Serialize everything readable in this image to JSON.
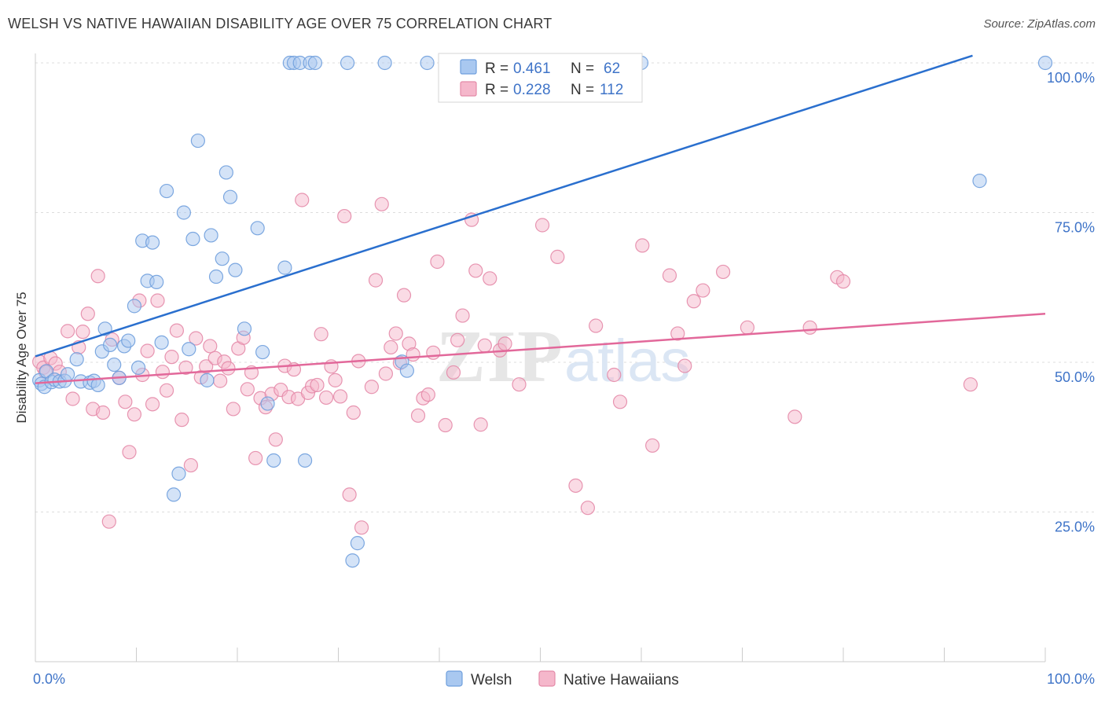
{
  "title": "WELSH VS NATIVE HAWAIIAN DISABILITY AGE OVER 75 CORRELATION CHART",
  "source": "Source: ZipAtlas.com",
  "watermark": {
    "zip": "ZIP",
    "atlas": "atlas"
  },
  "colors": {
    "welsh_fill": "#a9c8f0",
    "welsh_stroke": "#6f9fdd",
    "welsh_line": "#2a6fce",
    "hawaiian_fill": "#f5b7cb",
    "hawaiian_stroke": "#e48aa8",
    "hawaiian_line": "#e2689a",
    "tick_label": "#3f74c8",
    "grid": "#dddddd"
  },
  "legend": {
    "rows": [
      {
        "r_label": "R = ",
        "r_value": "0.461",
        "n_label": "N = ",
        "n_value": "62"
      },
      {
        "r_label": "R = ",
        "r_value": "0.228",
        "n_label": "N = ",
        "n_value": "112"
      }
    ],
    "bottom": [
      "Welsh",
      "Native Hawaiians"
    ]
  },
  "chart_data": {
    "type": "scatter",
    "title": "WELSH VS NATIVE HAWAIIAN DISABILITY AGE OVER 75 CORRELATION CHART",
    "xlabel": "",
    "ylabel": "Disability Age Over 75",
    "xlim": [
      0,
      100
    ],
    "ylim": [
      0,
      100
    ],
    "x_tick_labels": [
      "0.0%",
      "100.0%"
    ],
    "y_tick_labels": [
      {
        "value": 25,
        "label": "25.0%"
      },
      {
        "value": 50,
        "label": "50.0%"
      },
      {
        "value": 75,
        "label": "75.0%"
      },
      {
        "value": 100,
        "label": "100.0%"
      }
    ],
    "grid": true,
    "legend_position": "top-center",
    "series": [
      {
        "name": "Welsh",
        "r": 0.461,
        "n": 62,
        "trend": {
          "x": [
            0,
            92.8
          ],
          "y": [
            51.0,
            101.2
          ]
        },
        "points": [
          [
            0.4,
            47.0
          ],
          [
            0.6,
            46.4
          ],
          [
            0.9,
            45.9
          ],
          [
            1.1,
            48.5
          ],
          [
            1.6,
            46.7
          ],
          [
            1.9,
            47.1
          ],
          [
            2.4,
            46.8
          ],
          [
            2.9,
            46.9
          ],
          [
            3.2,
            48.0
          ],
          [
            4.1,
            50.5
          ],
          [
            4.5,
            46.8
          ],
          [
            5.4,
            46.6
          ],
          [
            5.8,
            46.9
          ],
          [
            6.2,
            46.2
          ],
          [
            6.6,
            51.8
          ],
          [
            6.9,
            55.6
          ],
          [
            7.4,
            52.9
          ],
          [
            7.8,
            49.6
          ],
          [
            8.3,
            47.4
          ],
          [
            8.8,
            52.7
          ],
          [
            9.2,
            53.6
          ],
          [
            9.8,
            59.4
          ],
          [
            10.2,
            49.1
          ],
          [
            10.6,
            70.3
          ],
          [
            11.1,
            63.6
          ],
          [
            11.6,
            70.0
          ],
          [
            12.0,
            63.4
          ],
          [
            12.5,
            53.3
          ],
          [
            13.0,
            78.6
          ],
          [
            13.7,
            27.9
          ],
          [
            14.2,
            31.4
          ],
          [
            14.7,
            75.0
          ],
          [
            15.2,
            52.2
          ],
          [
            15.6,
            70.6
          ],
          [
            16.1,
            87.0
          ],
          [
            17.0,
            47.0
          ],
          [
            17.4,
            71.2
          ],
          [
            17.9,
            64.3
          ],
          [
            18.5,
            67.3
          ],
          [
            18.9,
            81.7
          ],
          [
            19.3,
            77.6
          ],
          [
            19.8,
            65.4
          ],
          [
            20.7,
            55.6
          ],
          [
            22.0,
            72.4
          ],
          [
            22.5,
            51.7
          ],
          [
            23.0,
            43.1
          ],
          [
            23.6,
            33.6
          ],
          [
            24.7,
            65.8
          ],
          [
            25.2,
            100.0
          ],
          [
            25.6,
            100.0
          ],
          [
            26.2,
            100.0
          ],
          [
            26.7,
            33.6
          ],
          [
            27.2,
            100.0
          ],
          [
            27.7,
            100.0
          ],
          [
            30.9,
            100.0
          ],
          [
            31.4,
            16.9
          ],
          [
            31.9,
            19.8
          ],
          [
            34.6,
            100.0
          ],
          [
            36.3,
            50.1
          ],
          [
            36.8,
            48.6
          ],
          [
            38.8,
            100.0
          ],
          [
            60.0,
            100.0
          ],
          [
            93.5,
            80.3
          ],
          [
            100.0,
            100.0
          ]
        ]
      },
      {
        "name": "Native Hawaiians",
        "r": 0.228,
        "n": 112,
        "trend": {
          "x": [
            0,
            100
          ],
          "y": [
            46.5,
            58.1
          ]
        },
        "points": [
          [
            0.4,
            50.1
          ],
          [
            0.8,
            49.1
          ],
          [
            1.0,
            48.4
          ],
          [
            1.5,
            50.7
          ],
          [
            2.0,
            49.8
          ],
          [
            2.4,
            48.4
          ],
          [
            3.2,
            55.2
          ],
          [
            3.7,
            43.9
          ],
          [
            4.3,
            52.5
          ],
          [
            4.7,
            55.1
          ],
          [
            5.2,
            58.1
          ],
          [
            5.7,
            42.2
          ],
          [
            6.2,
            64.4
          ],
          [
            6.7,
            41.6
          ],
          [
            7.3,
            23.4
          ],
          [
            7.6,
            53.8
          ],
          [
            8.3,
            47.4
          ],
          [
            8.9,
            43.4
          ],
          [
            9.3,
            35.0
          ],
          [
            9.8,
            41.3
          ],
          [
            10.3,
            60.3
          ],
          [
            10.6,
            47.9
          ],
          [
            11.1,
            51.9
          ],
          [
            11.6,
            43.0
          ],
          [
            12.1,
            60.3
          ],
          [
            12.6,
            48.4
          ],
          [
            13.0,
            45.3
          ],
          [
            13.5,
            50.9
          ],
          [
            14.0,
            55.3
          ],
          [
            14.5,
            40.4
          ],
          [
            14.9,
            49.1
          ],
          [
            15.4,
            32.8
          ],
          [
            15.9,
            54.0
          ],
          [
            16.4,
            47.5
          ],
          [
            16.9,
            49.3
          ],
          [
            17.3,
            52.7
          ],
          [
            17.8,
            50.7
          ],
          [
            18.3,
            46.9
          ],
          [
            18.7,
            50.1
          ],
          [
            19.1,
            49.0
          ],
          [
            19.6,
            42.2
          ],
          [
            20.1,
            52.3
          ],
          [
            20.6,
            54.1
          ],
          [
            21.0,
            45.5
          ],
          [
            21.4,
            48.3
          ],
          [
            21.8,
            34.0
          ],
          [
            22.3,
            44.0
          ],
          [
            22.8,
            42.5
          ],
          [
            23.4,
            44.7
          ],
          [
            23.8,
            37.1
          ],
          [
            24.3,
            45.4
          ],
          [
            24.7,
            49.4
          ],
          [
            25.1,
            44.2
          ],
          [
            25.6,
            48.8
          ],
          [
            26.0,
            43.9
          ],
          [
            26.4,
            77.1
          ],
          [
            27.0,
            44.9
          ],
          [
            27.4,
            46.0
          ],
          [
            27.9,
            46.2
          ],
          [
            28.3,
            54.7
          ],
          [
            28.8,
            44.1
          ],
          [
            29.3,
            49.3
          ],
          [
            29.7,
            47.0
          ],
          [
            30.2,
            44.3
          ],
          [
            30.6,
            74.4
          ],
          [
            31.1,
            27.9
          ],
          [
            31.5,
            41.6
          ],
          [
            32.0,
            50.2
          ],
          [
            32.3,
            22.4
          ],
          [
            33.3,
            45.9
          ],
          [
            33.7,
            63.7
          ],
          [
            34.3,
            76.4
          ],
          [
            34.7,
            48.1
          ],
          [
            35.2,
            52.5
          ],
          [
            35.7,
            54.8
          ],
          [
            36.1,
            49.9
          ],
          [
            36.5,
            61.2
          ],
          [
            37.0,
            53.1
          ],
          [
            37.4,
            51.3
          ],
          [
            37.9,
            41.1
          ],
          [
            38.4,
            44.0
          ],
          [
            38.9,
            44.6
          ],
          [
            39.4,
            51.6
          ],
          [
            39.8,
            66.8
          ],
          [
            40.6,
            39.5
          ],
          [
            41.4,
            48.3
          ],
          [
            41.8,
            53.7
          ],
          [
            42.3,
            57.8
          ],
          [
            43.2,
            73.8
          ],
          [
            43.6,
            65.3
          ],
          [
            44.1,
            39.6
          ],
          [
            44.5,
            52.8
          ],
          [
            45.0,
            64.0
          ],
          [
            46.0,
            52.0
          ],
          [
            46.5,
            53.1
          ],
          [
            47.9,
            46.3
          ],
          [
            50.2,
            72.9
          ],
          [
            51.7,
            67.6
          ],
          [
            53.5,
            29.4
          ],
          [
            54.7,
            25.7
          ],
          [
            55.5,
            56.1
          ],
          [
            57.3,
            47.9
          ],
          [
            57.9,
            43.4
          ],
          [
            60.1,
            69.5
          ],
          [
            61.1,
            36.1
          ],
          [
            62.8,
            64.5
          ],
          [
            63.6,
            54.8
          ],
          [
            64.3,
            49.4
          ],
          [
            65.2,
            60.2
          ],
          [
            66.1,
            62.0
          ],
          [
            68.1,
            65.1
          ],
          [
            70.5,
            55.8
          ],
          [
            75.2,
            40.9
          ],
          [
            76.7,
            55.8
          ],
          [
            79.4,
            64.2
          ],
          [
            80.0,
            63.5
          ],
          [
            92.6,
            46.3
          ]
        ]
      }
    ]
  }
}
